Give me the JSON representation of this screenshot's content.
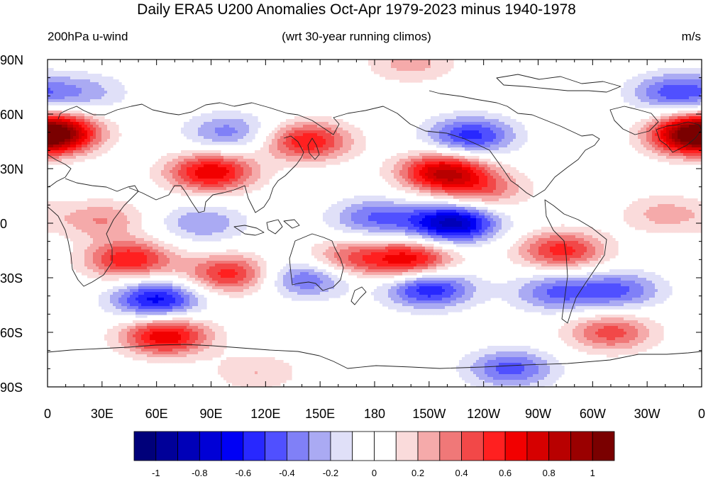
{
  "title": "Daily ERA5 U200 Anomalies Oct-Apr 1979-2023 minus 1940-1978",
  "subtitle_left": "200hPa u-wind",
  "subtitle_center": "(wrt 30-year running climos)",
  "subtitle_right": "m/s",
  "lat_labels": [
    "90N",
    "60N",
    "30N",
    "0",
    "30S",
    "60S",
    "90S"
  ],
  "lon_labels": [
    "0",
    "30E",
    "60E",
    "90E",
    "120E",
    "150E",
    "180",
    "150W",
    "120W",
    "90W",
    "60W",
    "30W",
    "0"
  ],
  "colorbar": {
    "colors": [
      "#00007a",
      "#000099",
      "#0000b8",
      "#0000d6",
      "#0000f5",
      "#2828ff",
      "#5050ff",
      "#8080f7",
      "#aaaaf3",
      "#e0e0f8",
      "#ffffff",
      "#ffffff",
      "#fadbdb",
      "#f5aaaa",
      "#f07878",
      "#f24848",
      "#ff2020",
      "#f20000",
      "#d60000",
      "#b80000",
      "#9a0000",
      "#7a0000"
    ],
    "labels": [
      "-1",
      "-0.8",
      "-0.6",
      "-0.4",
      "-0.2",
      "0",
      "0.2",
      "0.4",
      "0.6",
      "0.8",
      "1"
    ]
  },
  "chart_data": {
    "type": "heatmap",
    "variable": "200hPa u-wind",
    "units": "m/s",
    "lon_range": [
      0,
      360
    ],
    "lat_range": [
      -90,
      90
    ],
    "color_scale": {
      "min": -1.1,
      "max": 1.1,
      "step": 0.1
    },
    "anomaly_features": [
      {
        "lon": 5,
        "lat": 50,
        "value": 0.65
      },
      {
        "lon": 355,
        "lat": 48,
        "value": 0.75
      },
      {
        "lon": 90,
        "lat": 28,
        "value": 0.7
      },
      {
        "lon": 143,
        "lat": 45,
        "value": 0.6
      },
      {
        "lon": 218,
        "lat": 28,
        "value": 0.8
      },
      {
        "lon": 240,
        "lat": 18,
        "value": 0.35
      },
      {
        "lon": 233,
        "lat": 48,
        "value": -0.55
      },
      {
        "lon": 100,
        "lat": 50,
        "value": -0.35
      },
      {
        "lon": 223,
        "lat": 0,
        "value": -0.85
      },
      {
        "lon": 180,
        "lat": 3,
        "value": -0.4
      },
      {
        "lon": 85,
        "lat": 0,
        "value": -0.3
      },
      {
        "lon": 200,
        "lat": -20,
        "value": 0.65
      },
      {
        "lon": 283,
        "lat": -15,
        "value": 0.55
      },
      {
        "lon": 45,
        "lat": -20,
        "value": 0.6
      },
      {
        "lon": 100,
        "lat": -28,
        "value": 0.55
      },
      {
        "lon": 165,
        "lat": -20,
        "value": 0.4
      },
      {
        "lon": 60,
        "lat": -42,
        "value": -0.65
      },
      {
        "lon": 143,
        "lat": -30,
        "value": -0.45
      },
      {
        "lon": 210,
        "lat": -36,
        "value": -0.6
      },
      {
        "lon": 280,
        "lat": -38,
        "value": -0.4
      },
      {
        "lon": 315,
        "lat": -37,
        "value": -0.4
      },
      {
        "lon": 65,
        "lat": -62,
        "value": 0.7
      },
      {
        "lon": 310,
        "lat": -60,
        "value": 0.45
      },
      {
        "lon": 255,
        "lat": -80,
        "value": -0.45
      },
      {
        "lon": 345,
        "lat": 72,
        "value": -0.45
      },
      {
        "lon": 200,
        "lat": 88,
        "value": 0.25
      },
      {
        "lon": 20,
        "lat": 72,
        "value": -0.25
      },
      {
        "lon": 30,
        "lat": 2,
        "value": 0.3
      },
      {
        "lon": 340,
        "lat": 5,
        "value": 0.25
      },
      {
        "lon": 115,
        "lat": -82,
        "value": 0.2
      }
    ]
  }
}
